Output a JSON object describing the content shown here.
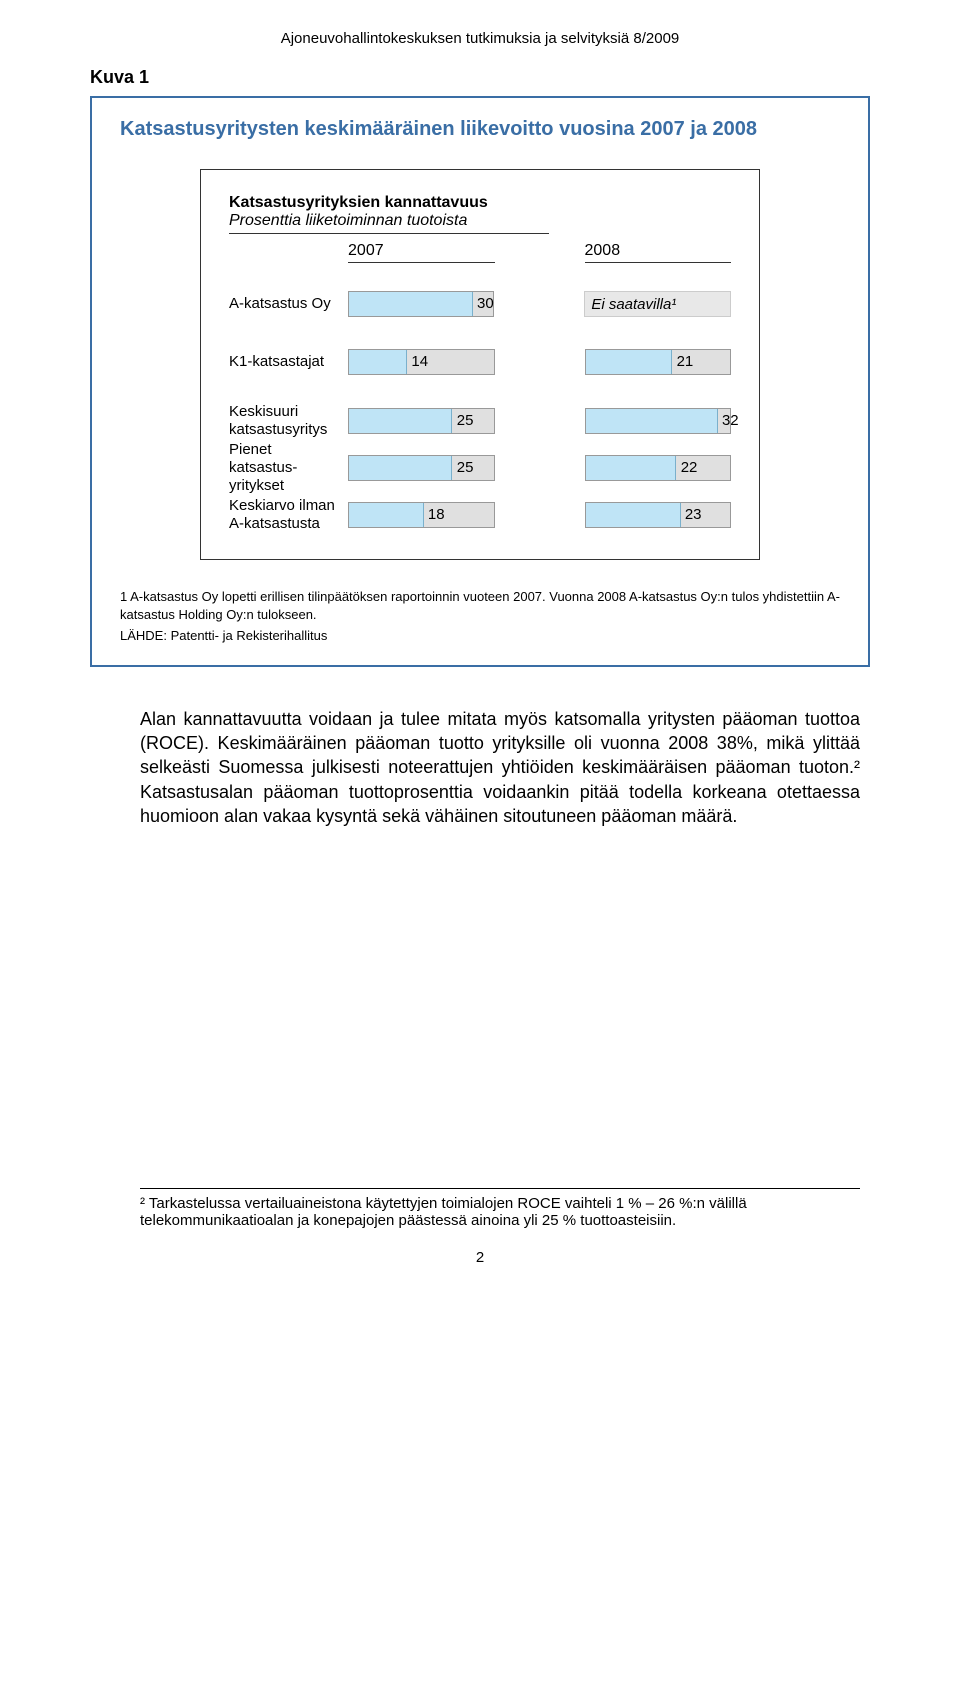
{
  "header": "Ajoneuvohallintokeskuksen tutkimuksia ja selvityksiä 8/2009",
  "kuva_label": "Kuva 1",
  "chart": {
    "title": "Katsastusyritysten keskimääräinen liikevoitto vuosina 2007 ja 2008",
    "subtitle_bold": "Katsastusyrityksien kannattavuus",
    "subtitle_italic": "Prosenttia liiketoiminnan tuotoista",
    "year_left": "2007",
    "year_right": "2008",
    "rows": [
      {
        "label": "A-katsastus Oy",
        "v2007": 30,
        "v2008_text": "Ei saatavilla¹",
        "v2008": null,
        "max": 35
      },
      {
        "label": "K1-katsastajat",
        "v2007": 14,
        "v2008": 21,
        "max": 35
      },
      {
        "label": "Keskisuuri katsastusyritys",
        "v2007": 25,
        "v2008": 32,
        "max": 35
      },
      {
        "label": "Pienet katsastus-yritykset",
        "v2007": 25,
        "v2008": 22,
        "max": 35
      },
      {
        "label": "Keskiarvo ilman A-katsastusta",
        "v2007": 18,
        "v2008": 23,
        "max": 35
      }
    ],
    "footnote1": "1 A-katsastus Oy lopetti erillisen tilinpäätöksen raportoinnin vuoteen 2007. Vuonna 2008 A-katsastus Oy:n tulos yhdistettiin A-katsastus Holding Oy:n tulokseen.",
    "footnote2": "LÄHDE: Patentti- ja Rekisterihallitus",
    "bar_color": "#bfe4f6",
    "bar_track_color": "#e0e0e0",
    "border_color": "#3a6ea5"
  },
  "body": "Alan kannattavuutta voidaan ja tulee mitata myös katsomalla yritysten pääoman tuottoa (ROCE). Keskimääräinen pääoman tuotto yrityksille oli vuonna 2008 38%, mikä ylittää selkeästi Suomessa julkisesti noteerattujen yhtiöiden keskimääräisen pääoman tuoton.² Katsastusalan pääoman tuottoprosenttia voidaankin pitää todella korkeana otettaessa huomioon alan vakaa kysyntä sekä vähäinen sitoutuneen pääoman määrä.",
  "bottom_footnote": "² Tarkastelussa vertailuaineistona käytettyjen toimialojen ROCE vaihteli 1 % – 26 %:n välillä telekommunikaatioalan ja konepajojen päästessä ainoina yli 25 % tuottoasteisiin.",
  "page_num": "2"
}
